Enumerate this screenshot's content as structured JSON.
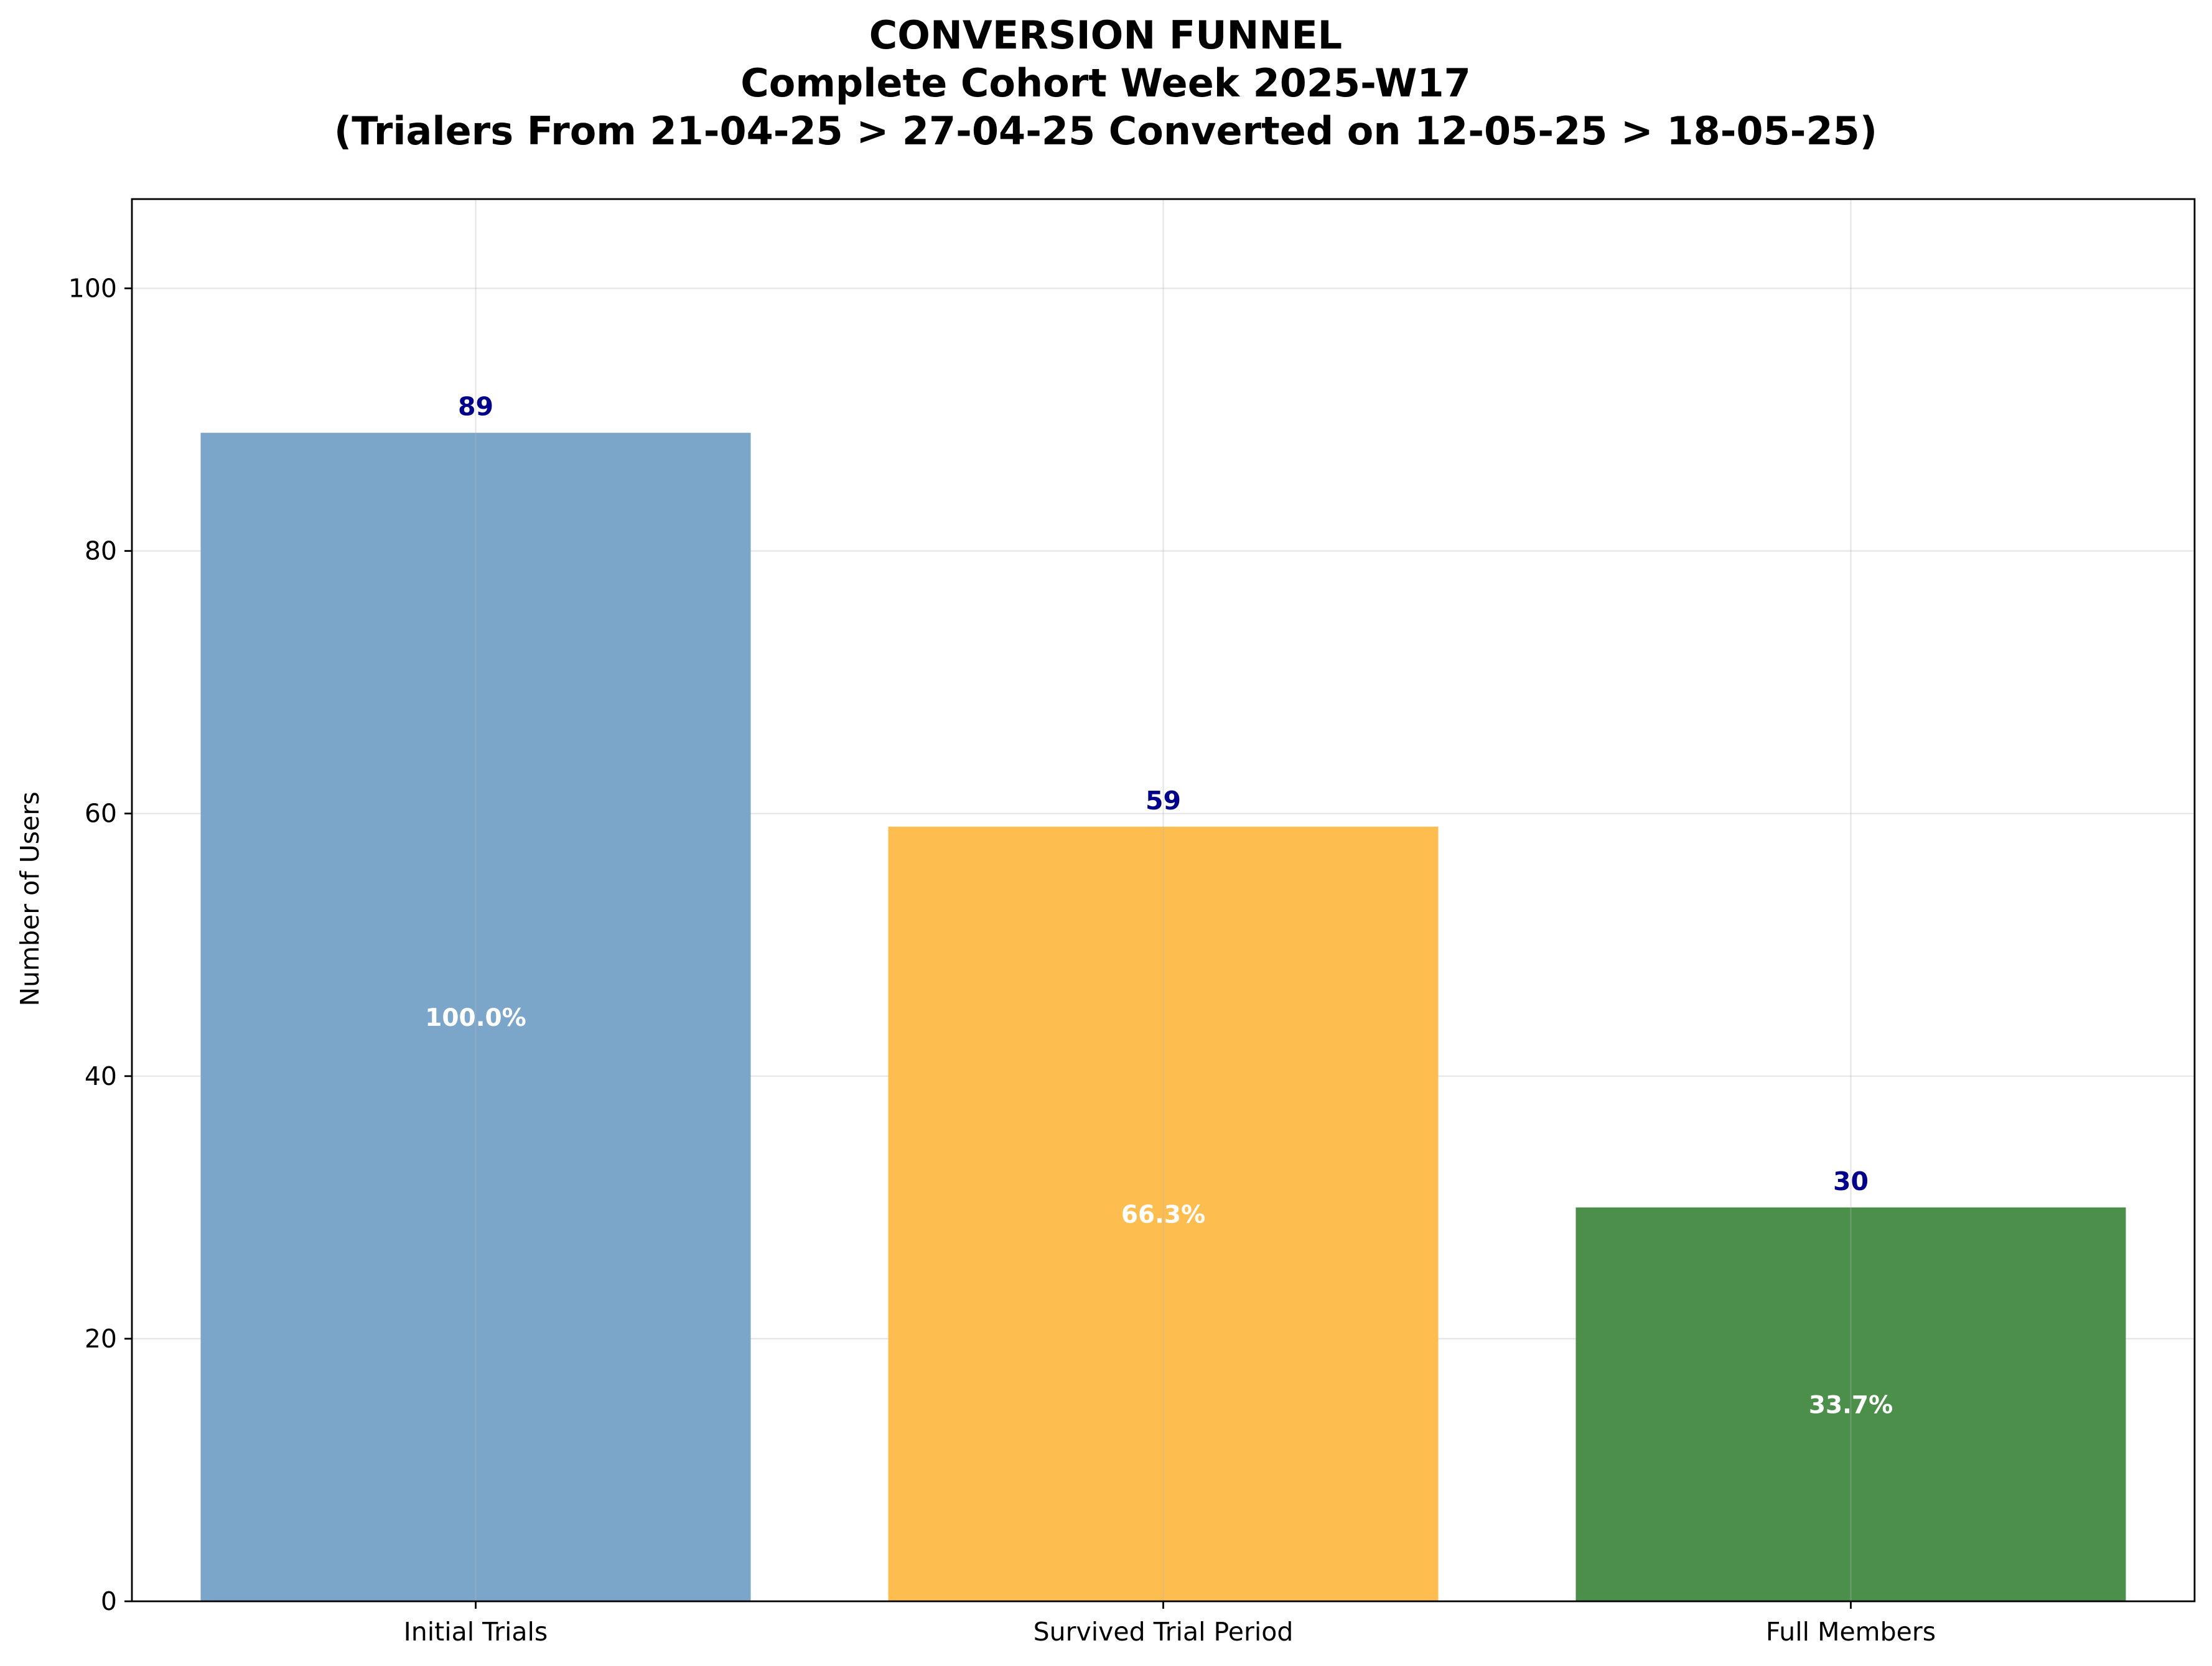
{
  "chart_data": {
    "type": "bar",
    "title_lines": [
      "CONVERSION FUNNEL",
      "Complete Cohort Week 2025-W17",
      "(Trialers From 21-04-25 > 27-04-25 Converted on 12-05-25 > 18-05-25)"
    ],
    "xlabel": "",
    "ylabel": "Number of Users",
    "categories": [
      "Initial Trials",
      "Survived Trial Period",
      "Full Members"
    ],
    "values": [
      89,
      59,
      30
    ],
    "value_labels": [
      "89",
      "59",
      "30"
    ],
    "percent_labels": [
      "100.0%",
      "66.3%",
      "33.7%"
    ],
    "bar_colors": [
      "#7ba6ca",
      "#fdbe4f",
      "#4b8f4b"
    ],
    "value_label_color": "#00008b",
    "percent_label_color": "#ffffff",
    "ylim": [
      0,
      106.8
    ],
    "yticks": [
      0,
      20,
      40,
      60,
      80,
      100
    ],
    "grid": true
  }
}
